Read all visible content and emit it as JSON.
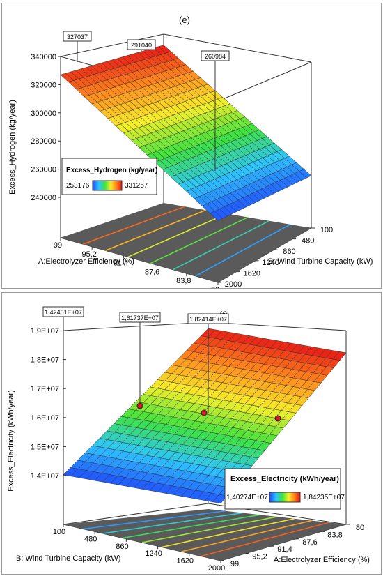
{
  "chart_data": [
    {
      "type": "surface3d",
      "panel_label": "(e)",
      "zlabel": "Excess_Hydrogen  (kg/year)",
      "xlabel": "A:Electrolyzer Efficiency (%)",
      "ylabel": "B: Wind Turbine Capacity (kW)",
      "z_ticks": [
        "340000",
        "320000",
        "300000",
        "280000",
        "260000",
        "240000"
      ],
      "zlim": [
        240000,
        340000
      ],
      "x_ticks": [
        "99",
        "95,2",
        "91,4",
        "87,6",
        "83,8",
        "80"
      ],
      "y_ticks": [
        "100",
        "480",
        "860",
        "1240",
        "1620",
        "2000"
      ],
      "x_range": [
        80,
        99
      ],
      "y_range": [
        100,
        2000
      ],
      "corner_values": {
        "a99_b100": 327037,
        "a99_b2000": 331257,
        "a80_b100": 253176,
        "a80_b2000": 257396
      },
      "point_labels": [
        "327037",
        "291040",
        "260984"
      ],
      "legend": {
        "title": "Excess_Hydrogen  (kg/year)",
        "min": "253176",
        "max": "331257",
        "position": "left"
      },
      "colormap": [
        "#1f4cff",
        "#2ec5ff",
        "#3ee23e",
        "#f5ef2a",
        "#ff8a1e",
        "#e81515"
      ]
    },
    {
      "type": "surface3d",
      "panel_label": "(f)",
      "zlabel": "Excess_Electricity  (kWh/year)",
      "xlabel": "B: Wind Turbine Capacity (kW)",
      "ylabel": "A:Electrolyzer Efficiency (%)",
      "z_ticks": [
        "1,9E+07",
        "1,8E+07",
        "1,7E+07",
        "1,6E+07",
        "1,5E+07",
        "1,4E+07"
      ],
      "zlim": [
        14000000,
        19000000
      ],
      "x_ticks": [
        "100",
        "480",
        "860",
        "1240",
        "1620",
        "2000"
      ],
      "y_ticks": [
        "80",
        "83,8",
        "87,6",
        "91,4",
        "95,2",
        "99"
      ],
      "x_range": [
        100,
        2000
      ],
      "y_range": [
        80,
        99
      ],
      "corner_values": {
        "b100_a99": 14027400,
        "b100_a80": 14100000,
        "b2000_a99": 18350000,
        "b2000_a80": 18423500
      },
      "point_labels": [
        "1,42451E+07",
        "1,61737E+07",
        "1,82414E+07"
      ],
      "legend": {
        "title": "Excess_Electricity  (kWh/year)",
        "min": "1,40274E+07",
        "max": "1,84235E+07",
        "position": "bottom-right"
      },
      "colormap": [
        "#1f4cff",
        "#2ec5ff",
        "#3ee23e",
        "#f5ef2a",
        "#ff8a1e",
        "#e81515"
      ]
    }
  ]
}
